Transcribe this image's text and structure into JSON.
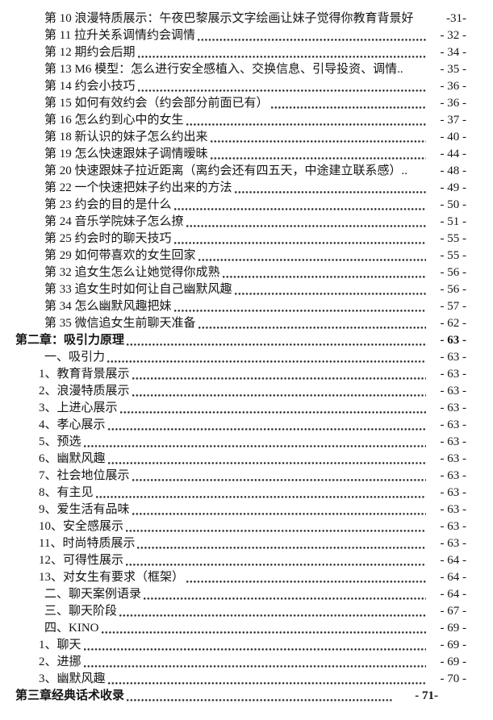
{
  "page": {
    "background_color": "#ffffff",
    "text_color": "#141414",
    "leader_dot_color": "#2b2b2b"
  },
  "toc": {
    "rows": [
      {
        "label": "第 10  浪漫特质展示：午夜巴黎展示文字绘画让妹子觉得你教育背景好",
        "page": "-31-",
        "level": 1,
        "bold": false,
        "leader": "none"
      },
      {
        "label": "第 11  拉升关系调情约会调情",
        "page": "- 32 -",
        "level": 1,
        "bold": false,
        "leader": "dots"
      },
      {
        "label": "第 12  期约会后期",
        "page": "- 34 -",
        "level": 1,
        "bold": false,
        "leader": "dots"
      },
      {
        "label": "第 13 M6 模型：怎么进行安全感植入、交换信息、引导投资、调情..",
        "page": "- 35 -",
        "level": 1,
        "bold": false,
        "leader": "none"
      },
      {
        "label": "第 14  约会小技巧",
        "page": "- 36 -",
        "level": 1,
        "bold": false,
        "leader": "dots"
      },
      {
        "label": "第 15  如何有效约会（约会部分前面已有）",
        "page": "- 36 -",
        "level": 1,
        "bold": false,
        "leader": "dots"
      },
      {
        "label": "第 16  怎么约到心中的女生",
        "page": "- 37 -",
        "level": 1,
        "bold": false,
        "leader": "dots"
      },
      {
        "label": "第 18  新认识的妹子怎么约出来",
        "page": "- 40 -",
        "level": 1,
        "bold": false,
        "leader": "dots"
      },
      {
        "label": "第 19  怎么快速跟妹子调情暧昧",
        "page": "- 44 -",
        "level": 1,
        "bold": false,
        "leader": "dots"
      },
      {
        "label": "第 20  快速跟妹子拉近距离（离约会还有四五天，中途建立联系感）..",
        "page": "- 48 -",
        "level": 1,
        "bold": false,
        "leader": "none"
      },
      {
        "label": "第 22  一个快速把妹子约出来的方法",
        "page": "- 49 -",
        "level": 1,
        "bold": false,
        "leader": "dots"
      },
      {
        "label": "第 23  约会的目的是什么",
        "page": "- 50 -",
        "level": 1,
        "bold": false,
        "leader": "dots"
      },
      {
        "label": "第 24  音乐学院妹子怎么撩",
        "page": "- 51 -",
        "level": 1,
        "bold": false,
        "leader": "dots"
      },
      {
        "label": "第 25  约会时的聊天技巧",
        "page": "- 55 -",
        "level": 1,
        "bold": false,
        "leader": "dots"
      },
      {
        "label": "第 29  如何带喜欢的女生回家",
        "page": "- 55 -",
        "level": 1,
        "bold": false,
        "leader": "dots"
      },
      {
        "label": "第 32  追女生怎么让她觉得你成熟",
        "page": "- 56 -",
        "level": 1,
        "bold": false,
        "leader": "dots"
      },
      {
        "label": "第 33  追女生时如何让自己幽默风趣",
        "page": "- 56 -",
        "level": 1,
        "bold": false,
        "leader": "dots"
      },
      {
        "label": "第 34  怎么幽默风趣把妹",
        "page": "- 57 -",
        "level": 1,
        "bold": false,
        "leader": "dots"
      },
      {
        "label": "第 35  微信追女生前聊天准备",
        "page": "- 62 -",
        "level": 1,
        "bold": false,
        "leader": "dots"
      },
      {
        "label": "第二章：吸引力原理",
        "page": "- 63 -",
        "level": 0,
        "bold": true,
        "leader": "dots"
      },
      {
        "label": "一、吸引力",
        "page": "- 63 -",
        "level": 1,
        "bold": false,
        "leader": "dots"
      },
      {
        "label": "1、教育背景展示",
        "page": "- 63 -",
        "level": 2,
        "bold": false,
        "leader": "dots"
      },
      {
        "label": "2、浪漫特质展示",
        "page": "- 63 -",
        "level": 2,
        "bold": false,
        "leader": "dots"
      },
      {
        "label": "3、上进心展示",
        "page": "- 63 -",
        "level": 2,
        "bold": false,
        "leader": "dots"
      },
      {
        "label": "4、孝心展示",
        "page": "- 63 -",
        "level": 2,
        "bold": false,
        "leader": "dots"
      },
      {
        "label": "5、预选",
        "page": "- 63 -",
        "level": 2,
        "bold": false,
        "leader": "dots"
      },
      {
        "label": "6、幽默风趣",
        "page": "- 63 -",
        "level": 2,
        "bold": false,
        "leader": "dots"
      },
      {
        "label": "7、社会地位展示",
        "page": "- 63 -",
        "level": 2,
        "bold": false,
        "leader": "dots"
      },
      {
        "label": "8、有主见",
        "page": "- 63 -",
        "level": 2,
        "bold": false,
        "leader": "dots"
      },
      {
        "label": "9、爱生活有品味",
        "page": "- 63 -",
        "level": 2,
        "bold": false,
        "leader": "dots"
      },
      {
        "label": "10、安全感展示",
        "page": "- 63 -",
        "level": 2,
        "bold": false,
        "leader": "dots"
      },
      {
        "label": "11、时尚特质展示",
        "page": "- 63 -",
        "level": 2,
        "bold": false,
        "leader": "dots"
      },
      {
        "label": "12、可得性展示",
        "page": "- 64 -",
        "level": 2,
        "bold": false,
        "leader": "dots"
      },
      {
        "label": "13、对女生有要求（框架）",
        "page": "- 64 -",
        "level": 2,
        "bold": false,
        "leader": "dots"
      },
      {
        "label": "二、聊天案例语录",
        "page": "- 64 -",
        "level": 1,
        "bold": false,
        "leader": "dots"
      },
      {
        "label": "三、聊天阶段",
        "page": "- 67 -",
        "level": 1,
        "bold": false,
        "leader": "dots"
      },
      {
        "label": "四、KINO",
        "page": "- 69 -",
        "level": 1,
        "bold": false,
        "leader": "dots"
      },
      {
        "label": "1、聊天",
        "page": "- 69 -",
        "level": 2,
        "bold": false,
        "leader": "dots"
      },
      {
        "label": "2、进挪",
        "page": "- 69 -",
        "level": 2,
        "bold": false,
        "leader": "dots"
      },
      {
        "label": "3、幽默风趣 ",
        "page": "- 70 -",
        "level": 2,
        "bold": false,
        "leader": "dots"
      },
      {
        "label": "第三章经典话术收录",
        "page": "- 71-",
        "level": 0,
        "bold": true,
        "leader": "dots",
        "variant": "shifted"
      }
    ]
  }
}
